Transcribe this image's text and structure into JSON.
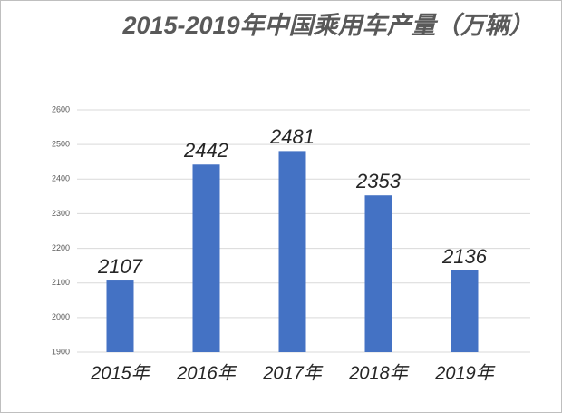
{
  "chart_data": {
    "type": "bar",
    "title": "2015-2019年中国乘用车产量（万辆）",
    "categories": [
      "2015年",
      "2016年",
      "2017年",
      "2018年",
      "2019年"
    ],
    "values": [
      2107,
      2442,
      2481,
      2353,
      2136
    ],
    "color": "#4472c4",
    "ylim": [
      1900,
      2600
    ],
    "yticks": [
      1900,
      2000,
      2100,
      2200,
      2300,
      2400,
      2500,
      2600
    ],
    "grid": true
  }
}
